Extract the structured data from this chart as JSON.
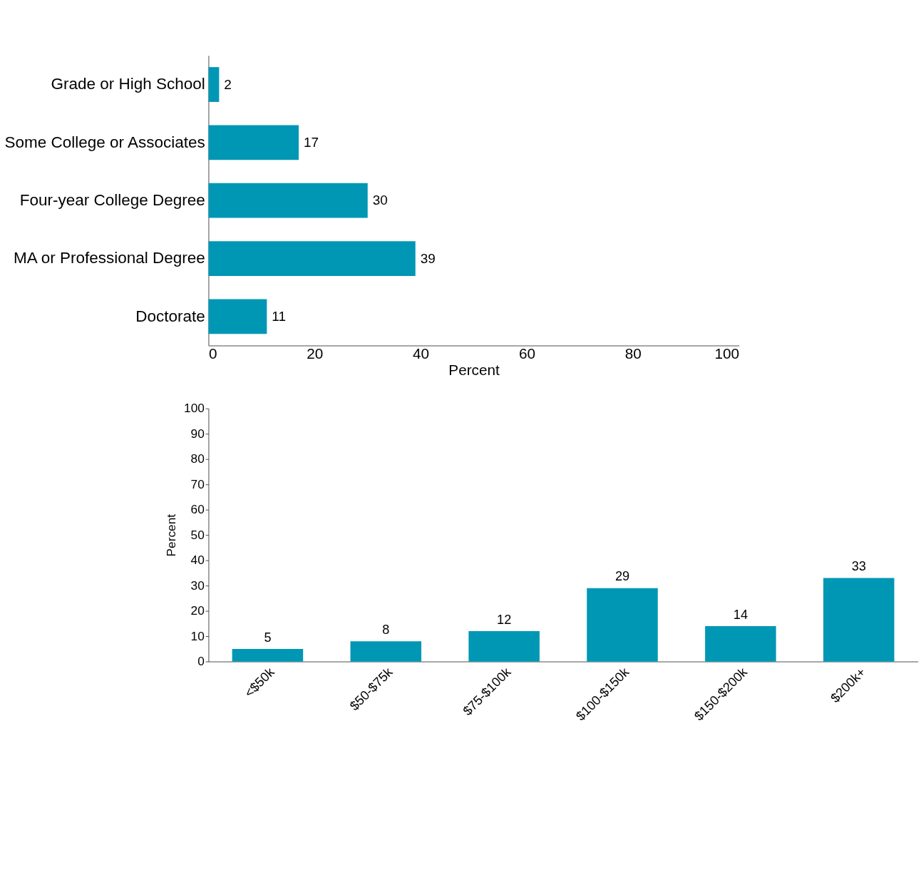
{
  "chart_data": [
    {
      "type": "bar",
      "orientation": "horizontal",
      "categories": [
        "Grade or High School",
        "Some College or Associates",
        "Four-year College Degree",
        "MA or Professional Degree",
        "Doctorate"
      ],
      "values": [
        2,
        17,
        30,
        39,
        11
      ],
      "color": "#0097b4",
      "xlim": [
        0,
        100
      ],
      "xticks": [
        0,
        20,
        40,
        60,
        80,
        100
      ],
      "xlabel": "Percent",
      "data_labels": true,
      "grid": false
    },
    {
      "type": "bar",
      "categories": [
        "<$50k",
        "$50-$75k",
        "$75-$100k",
        "$100-$150k",
        "$150-$200k",
        "$200k+"
      ],
      "values": [
        5,
        8,
        12,
        29,
        14,
        33
      ],
      "color": "#0097b4",
      "ylim": [
        0,
        100
      ],
      "yticks": [
        0,
        10,
        20,
        30,
        40,
        50,
        60,
        70,
        80,
        90,
        100
      ],
      "ylabel": "Percent",
      "data_labels": true,
      "grid": false
    }
  ]
}
